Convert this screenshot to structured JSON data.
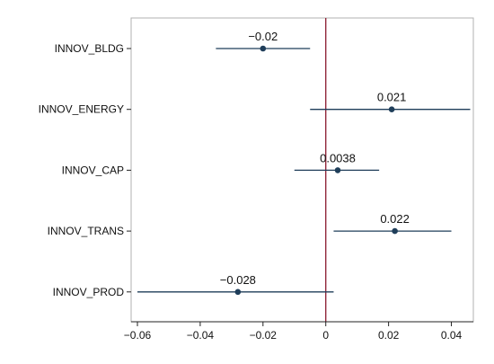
{
  "chart_data": {
    "type": "scatter",
    "categories": [
      "INNOV_BLDG",
      "INNOV_ENERGY",
      "INNOV_CAP",
      "INNOV_TRANS",
      "INNOV_PROD"
    ],
    "estimates": [
      -0.02,
      0.021,
      0.0038,
      0.022,
      -0.028
    ],
    "estimate_labels": [
      "−0.02",
      "0.021",
      "0.0038",
      "0.022",
      "−0.028"
    ],
    "ci_low": [
      -0.035,
      -0.005,
      -0.01,
      0.0025,
      -0.06
    ],
    "ci_high": [
      -0.005,
      0.046,
      0.017,
      0.04,
      0.0025
    ],
    "xlim": [
      -0.062,
      0.047
    ],
    "x_ticks": [
      -0.06,
      -0.04,
      -0.02,
      0,
      0.02,
      0.04
    ],
    "x_tick_labels": [
      "−0.06",
      "−0.04",
      "−0.02",
      "0",
      "0.02",
      "0.04"
    ],
    "reference_line_x": 0,
    "grid": false,
    "legend": "none",
    "xlabel": "",
    "ylabel": "",
    "title": "",
    "colors": {
      "marker": "#1f3e5a",
      "ci_line": "#1f3e5a",
      "reference_line": "#8b1a2f",
      "axis": "#222222",
      "plot_border": "#b0b0b0"
    }
  }
}
